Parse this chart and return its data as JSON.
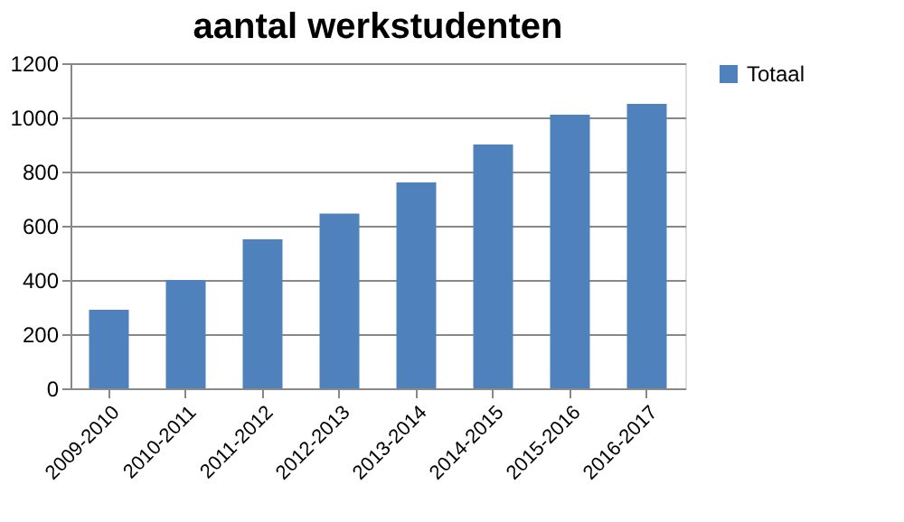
{
  "chart_data": {
    "type": "bar",
    "title": "aantal werkstudenten",
    "categories": [
      "2009-2010",
      "2010-2011",
      "2011-2012",
      "2012-2013",
      "2013-2014",
      "2014-2015",
      "2015-2016",
      "2016-2017"
    ],
    "series": [
      {
        "name": "Totaal",
        "color": "#4f81bd",
        "values": [
          290,
          400,
          550,
          645,
          760,
          900,
          1010,
          1050
        ]
      }
    ],
    "ylim": [
      0,
      1200
    ],
    "yticks": [
      0,
      200,
      400,
      600,
      800,
      1000,
      1200
    ],
    "grid": "y",
    "legend": "right"
  }
}
